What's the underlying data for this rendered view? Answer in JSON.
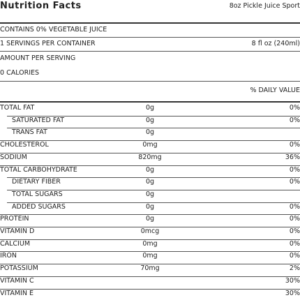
{
  "header": {
    "title": "Nutrition Facts",
    "product": "8oz Pickle Juice Sport"
  },
  "info": {
    "contains": "CONTAINS 0% VEGETABLE JUICE",
    "servings": "1 SERVINGS PER CONTAINER",
    "serving_size": "8 fl oz (240ml)",
    "amount_per_serving": "AMOUNT PER SERVING",
    "calories": "0 CALORIES",
    "daily_value_header": "% DAILY VALUE"
  },
  "table": {
    "rows": [
      {
        "label": "TOTAL FAT",
        "amount": "0g",
        "dv": "0%",
        "sub": false
      },
      {
        "label": "SATURATED FAT",
        "amount": "0g",
        "dv": "0%",
        "sub": true
      },
      {
        "label": "TRANS FAT",
        "amount": "0g",
        "sub": true
      },
      {
        "label": "CHOLESTEROL",
        "amount": "0mg",
        "dv": "0%",
        "sub": false
      },
      {
        "label": "SODIUM",
        "amount": "820mg",
        "dv": "36%",
        "sub": false
      },
      {
        "label": "TOTAL CARBOHYDRATE",
        "amount": "0g",
        "dv": "0%",
        "sub": false
      },
      {
        "label": "DIETARY FIBER",
        "amount": "0g",
        "dv": "0%",
        "sub": true
      },
      {
        "label": "TOTAL SUGARS",
        "amount": "0g",
        "sub": true
      },
      {
        "label": "ADDED SUGARS",
        "amount": "0g",
        "dv": "0%",
        "sub": true
      },
      {
        "label": "PROTEIN",
        "amount": "0g",
        "dv": "0%",
        "sub": false
      },
      {
        "label": "VITAMIN D",
        "amount": "0mcg",
        "dv": "0%",
        "sub": false
      },
      {
        "label": "CALCIUM",
        "amount": "0mg",
        "dv": "0%",
        "sub": false
      },
      {
        "label": "IRON",
        "amount": "0mg",
        "dv": "0%",
        "sub": false
      },
      {
        "label": "POTASSIUM",
        "amount": "70mg",
        "dv": "2%",
        "sub": false
      },
      {
        "label": "VITAMIN C",
        "amount": "",
        "dv": "30%",
        "sub": false
      },
      {
        "label": "VITAMIN E",
        "amount": "",
        "dv": "30%",
        "sub": false
      }
    ]
  }
}
